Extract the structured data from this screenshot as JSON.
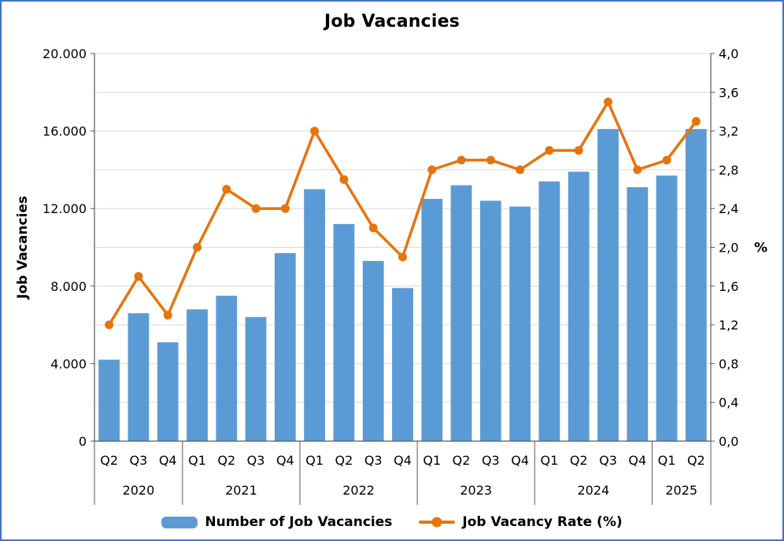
{
  "title": "Job Vacancies",
  "colors": {
    "bar": "#5B9BD5",
    "line": "#E6740E",
    "gridline": "#D9D9D9",
    "axis": "#595959",
    "text": "#000000",
    "frame_border": "#4472C4"
  },
  "axes": {
    "left_title": "Job Vacancies",
    "right_title": "%",
    "left_tick_labels": [
      "0",
      "4.000",
      "8.000",
      "12.000",
      "16.000",
      "20.000"
    ],
    "right_tick_labels": [
      "0,0",
      "0,4",
      "0,8",
      "1,2",
      "1,6",
      "2,0",
      "2,4",
      "2,8",
      "3,2",
      "3,6",
      "4,0"
    ]
  },
  "legend": {
    "items": [
      {
        "label": "Number of Job Vacancies",
        "marker": "bar"
      },
      {
        "label": "Job Vacancy Rate (%)",
        "marker": "line"
      }
    ]
  },
  "chart_data": {
    "type": "bar",
    "combo": "bar+line",
    "title": "Job Vacancies",
    "categories": [
      "Q2",
      "Q3",
      "Q4",
      "Q1",
      "Q2",
      "Q3",
      "Q4",
      "Q1",
      "Q2",
      "Q3",
      "Q4",
      "Q1",
      "Q2",
      "Q3",
      "Q4",
      "Q1",
      "Q2",
      "Q3",
      "Q4",
      "Q1",
      "Q2"
    ],
    "year_groups": [
      {
        "year": "2020",
        "quarters": 3
      },
      {
        "year": "2021",
        "quarters": 4
      },
      {
        "year": "2022",
        "quarters": 4
      },
      {
        "year": "2023",
        "quarters": 4
      },
      {
        "year": "2024",
        "quarters": 4
      },
      {
        "year": "2025",
        "quarters": 2
      }
    ],
    "series": [
      {
        "name": "Number of Job Vacancies",
        "type": "bar",
        "axis": "left",
        "values": [
          4200,
          6600,
          5100,
          6800,
          7500,
          6400,
          9700,
          13000,
          11200,
          9300,
          7900,
          12500,
          13200,
          12400,
          12100,
          13400,
          13900,
          16100,
          13100,
          13700,
          16100
        ]
      },
      {
        "name": "Job Vacancy Rate (%)",
        "type": "line",
        "axis": "right",
        "values": [
          1.2,
          1.7,
          1.3,
          2.0,
          2.6,
          2.4,
          2.4,
          3.2,
          2.7,
          2.2,
          1.9,
          2.8,
          2.9,
          2.9,
          2.8,
          3.0,
          3.0,
          3.5,
          2.8,
          2.9,
          3.3
        ]
      }
    ],
    "left_axis": {
      "title": "Job Vacancies",
      "min": 0,
      "max": 20000,
      "tick_step": 4000
    },
    "right_axis": {
      "title": "%",
      "min": 0,
      "max": 4,
      "tick_step": 0.4
    },
    "grid": true,
    "legend_position": "bottom"
  }
}
